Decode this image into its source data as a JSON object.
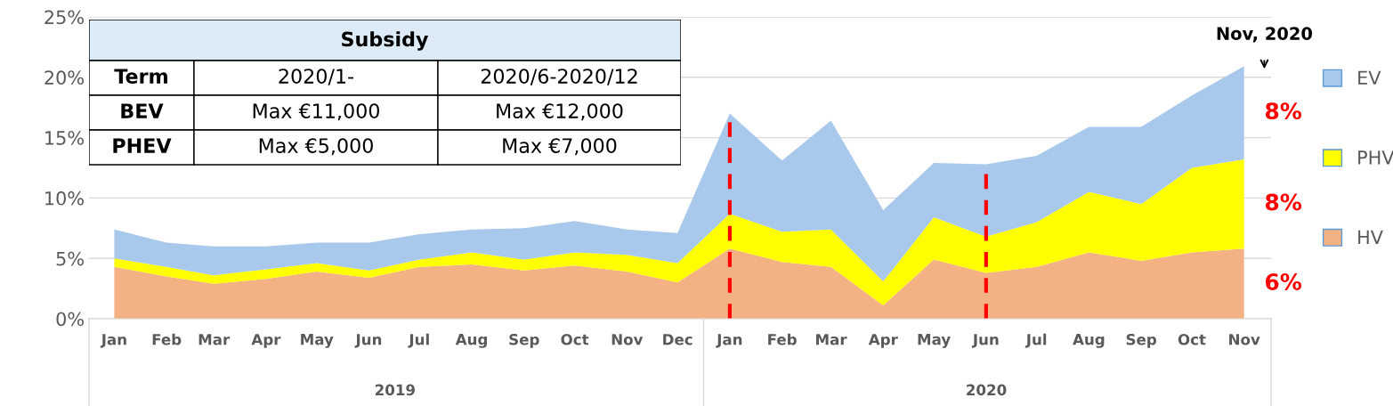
{
  "chart_data": {
    "type": "area",
    "stacked": true,
    "x": [
      "2019-01-15",
      "2019-02-15",
      "2019-03-15",
      "2019-04-15",
      "2019-05-15",
      "2019-06-15",
      "2019-07-15",
      "2019-08-15",
      "2019-09-15",
      "2019-10-15",
      "2019-11-15",
      "2019-12-15",
      "2020-01-15",
      "2020-02-15",
      "2020-03-15",
      "2020-04-15",
      "2020-05-15",
      "2020-06-15",
      "2020-07-15",
      "2020-08-15",
      "2020-09-15",
      "2020-10-15",
      "2020-11-15"
    ],
    "xlim": [
      "2018-12-31",
      "2020-12-01"
    ],
    "xticks": [
      {
        "value": "2019-01-15",
        "label": "Jan"
      },
      {
        "value": "2019-02-15",
        "label": "Feb"
      },
      {
        "value": "2019-03-15",
        "label": "Mar"
      },
      {
        "value": "2019-04-15",
        "label": "Apr"
      },
      {
        "value": "2019-05-15",
        "label": "May"
      },
      {
        "value": "2019-06-15",
        "label": "Jun"
      },
      {
        "value": "2019-07-15",
        "label": "Jul"
      },
      {
        "value": "2019-08-15",
        "label": "Aug"
      },
      {
        "value": "2019-09-15",
        "label": "Sep"
      },
      {
        "value": "2019-10-15",
        "label": "Oct"
      },
      {
        "value": "2019-11-15",
        "label": "Nov"
      },
      {
        "value": "2019-12-15",
        "label": "Dec"
      },
      {
        "value": "2020-01-15",
        "label": "Jan"
      },
      {
        "value": "2020-02-15",
        "label": "Feb"
      },
      {
        "value": "2020-03-15",
        "label": "Mar"
      },
      {
        "value": "2020-04-15",
        "label": "Apr"
      },
      {
        "value": "2020-05-15",
        "label": "May"
      },
      {
        "value": "2020-06-15",
        "label": "Jun"
      },
      {
        "value": "2020-07-15",
        "label": "Jul"
      },
      {
        "value": "2020-08-15",
        "label": "Aug"
      },
      {
        "value": "2020-09-15",
        "label": "Sep"
      },
      {
        "value": "2020-10-15",
        "label": "Oct"
      },
      {
        "value": "2020-11-15",
        "label": "Nov"
      }
    ],
    "ylim": [
      0,
      25
    ],
    "yticks": [
      {
        "value": 0,
        "label": "0%"
      },
      {
        "value": 5,
        "label": "5%"
      },
      {
        "value": 10,
        "label": "10%"
      },
      {
        "value": 15,
        "label": "15%"
      },
      {
        "value": 20,
        "label": "20%"
      },
      {
        "value": 25,
        "label": "25%"
      }
    ],
    "grid": "y",
    "legend": "right",
    "series": [
      {
        "name": "HV",
        "color": "#f4b183",
        "values": [
          4.3,
          3.5,
          2.9,
          3.3,
          3.9,
          3.4,
          4.3,
          4.5,
          4.0,
          4.4,
          3.9,
          3.0,
          5.8,
          4.7,
          4.3,
          1.1,
          4.9,
          3.8,
          4.3,
          5.5,
          4.8,
          5.5,
          5.8
        ]
      },
      {
        "name": "PHV",
        "color": "#ffff00",
        "values": [
          0.7,
          0.8,
          0.7,
          0.8,
          0.7,
          0.6,
          0.6,
          1.0,
          0.9,
          1.1,
          1.4,
          1.6,
          2.9,
          2.5,
          3.1,
          2.0,
          3.5,
          3.0,
          3.7,
          5.0,
          4.7,
          7.0,
          7.4
        ]
      },
      {
        "name": "EV",
        "color": "#a9c9ec",
        "values": [
          2.4,
          2.0,
          2.4,
          1.9,
          1.7,
          2.3,
          2.1,
          1.9,
          2.6,
          2.6,
          2.1,
          2.5,
          8.3,
          5.9,
          9.0,
          5.9,
          4.5,
          6.0,
          5.5,
          5.4,
          6.4,
          6.0,
          7.7
        ]
      }
    ],
    "ref_lines": [
      {
        "axis": "x",
        "value": "2020-01-15",
        "color": "#ff0000",
        "line_style": "dashed"
      },
      {
        "axis": "x",
        "value": "2020-06-15",
        "color": "#ff0000",
        "line_style": "dashed"
      }
    ],
    "annotations": [
      "Subsidy",
      "Term",
      "2020/1-",
      "2020/6-2020/12",
      "BEV",
      "Max €11,000",
      "Max €12,000",
      "PHEV",
      "Max €5,000",
      "Max €7,000",
      "Nov, 2020",
      "6%",
      "8%",
      "8%",
      "2019",
      "2020"
    ]
  }
}
